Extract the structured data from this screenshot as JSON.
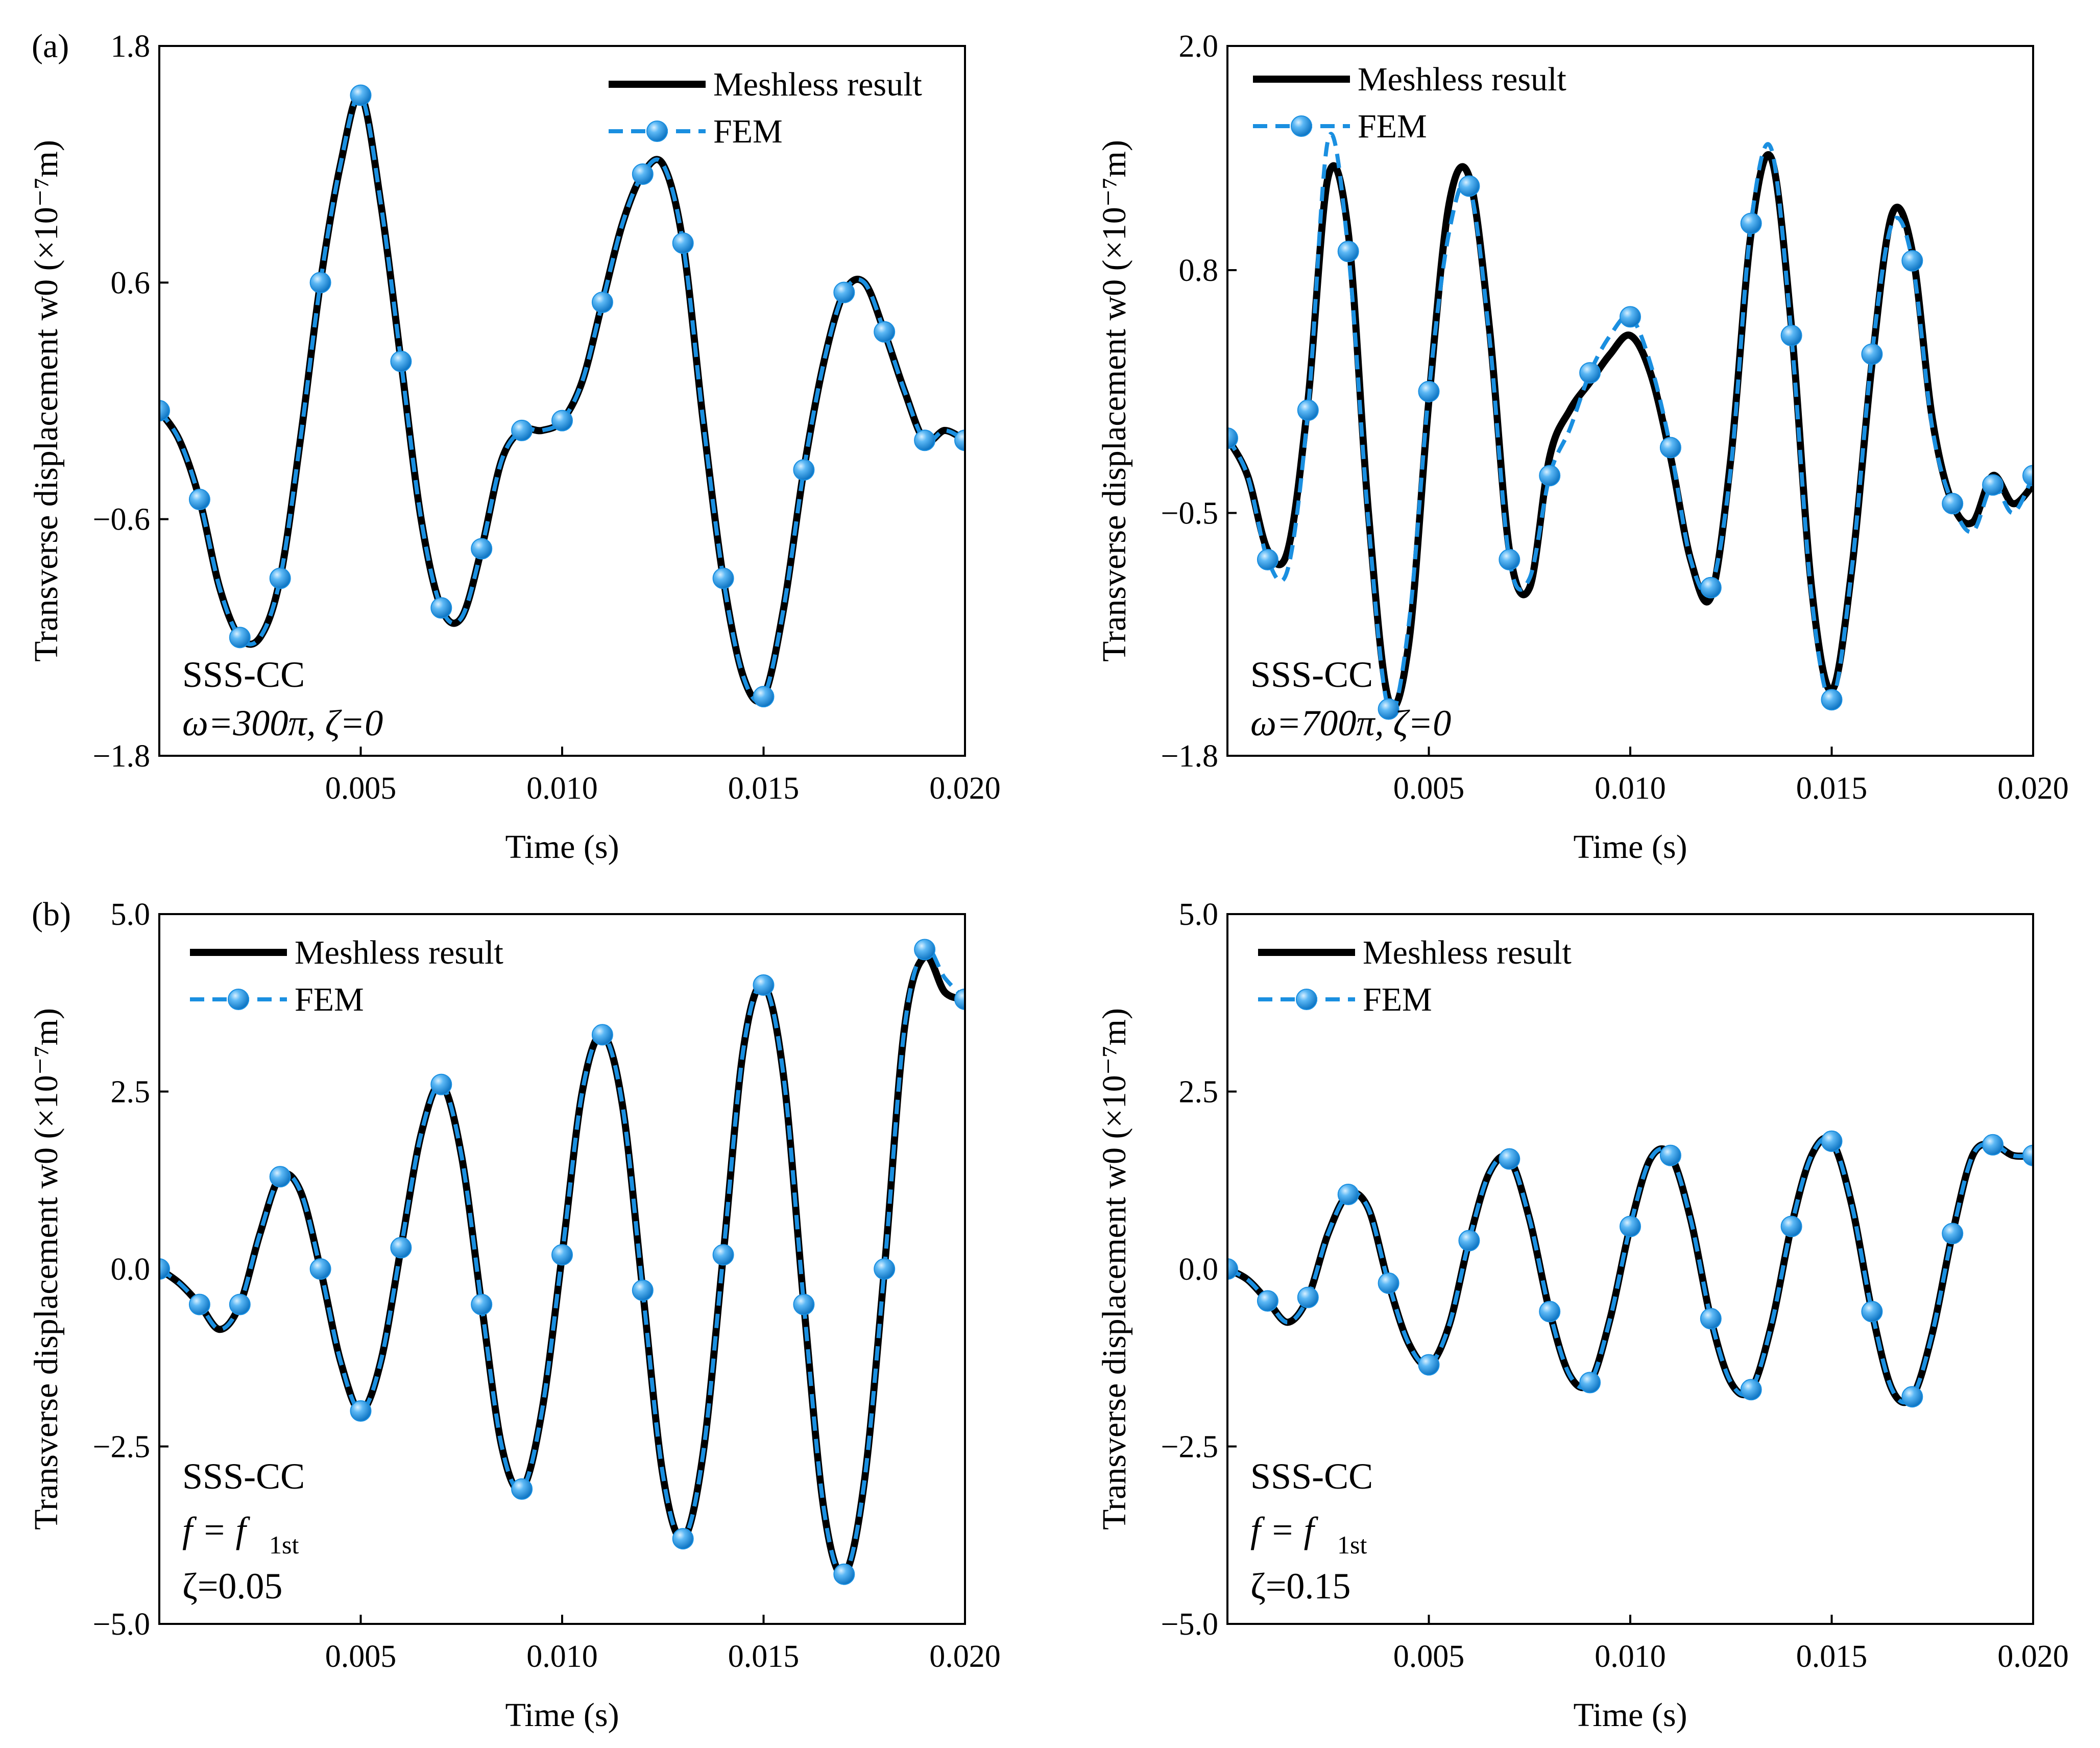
{
  "figure": {
    "panel_tags": [
      "(a)",
      "(b)"
    ]
  },
  "chart_data": [
    {
      "type": "line",
      "panel": "(a)",
      "xlabel": "Time (s)",
      "ylabel": "Transverse displacement w0 (×10⁻⁷m)",
      "xlim": [
        0,
        0.02
      ],
      "ylim": [
        -1.8,
        1.8
      ],
      "xticks": [
        0.005,
        0.01,
        0.015,
        0.02
      ],
      "xtick_labels": [
        "0.005",
        "0.010",
        "0.015",
        "0.020"
      ],
      "yticks": [
        -1.8,
        -0.6,
        0.6,
        1.8
      ],
      "ytick_labels": [
        "−1.8",
        "−0.6",
        "0.6",
        "1.8"
      ],
      "legend": [
        "Meshless result",
        "FEM"
      ],
      "annotations": [
        "SSS-CC",
        "ω=300π, ζ=0"
      ],
      "colors": {
        "meshless": "#000000",
        "fem": "#1a8fe0"
      },
      "series": [
        {
          "name": "Meshless result",
          "x": [
            0,
            0.0005,
            0.001,
            0.0015,
            0.002,
            0.0025,
            0.003,
            0.0035,
            0.004,
            0.0045,
            0.005,
            0.0055,
            0.006,
            0.0065,
            0.007,
            0.0075,
            0.008,
            0.0085,
            0.009,
            0.0095,
            0.01,
            0.0105,
            0.011,
            0.0115,
            0.012,
            0.0125,
            0.013,
            0.0135,
            0.014,
            0.0145,
            0.015,
            0.0155,
            0.016,
            0.0165,
            0.017,
            0.0175,
            0.018,
            0.0185,
            0.019,
            0.0195,
            0.02
          ],
          "y": [
            -0.05,
            -0.2,
            -0.5,
            -0.95,
            -1.2,
            -1.2,
            -0.9,
            -0.2,
            0.6,
            1.2,
            1.55,
            1.0,
            0.2,
            -0.6,
            -1.05,
            -1.1,
            -0.75,
            -0.3,
            -0.15,
            -0.15,
            -0.1,
            0.1,
            0.5,
            0.9,
            1.15,
            1.2,
            0.8,
            -0.1,
            -0.9,
            -1.4,
            -1.5,
            -1.05,
            -0.35,
            0.2,
            0.55,
            0.6,
            0.35,
            0.05,
            -0.2,
            -0.15,
            -0.2
          ]
        },
        {
          "name": "FEM",
          "x": [
            0,
            0.0005,
            0.001,
            0.0015,
            0.002,
            0.0025,
            0.003,
            0.0035,
            0.004,
            0.0045,
            0.005,
            0.0055,
            0.006,
            0.0065,
            0.007,
            0.0075,
            0.008,
            0.0085,
            0.009,
            0.0095,
            0.01,
            0.0105,
            0.011,
            0.0115,
            0.012,
            0.0125,
            0.013,
            0.0135,
            0.014,
            0.0145,
            0.015,
            0.0155,
            0.016,
            0.0165,
            0.017,
            0.0175,
            0.018,
            0.0185,
            0.019,
            0.0195,
            0.02
          ],
          "y": [
            -0.05,
            -0.2,
            -0.5,
            -0.95,
            -1.2,
            -1.2,
            -0.9,
            -0.2,
            0.6,
            1.2,
            1.55,
            1.0,
            0.2,
            -0.6,
            -1.05,
            -1.1,
            -0.75,
            -0.3,
            -0.15,
            -0.15,
            -0.1,
            0.1,
            0.5,
            0.9,
            1.15,
            1.2,
            0.8,
            -0.1,
            -0.9,
            -1.4,
            -1.5,
            -1.05,
            -0.35,
            0.2,
            0.55,
            0.6,
            0.35,
            0.05,
            -0.2,
            -0.15,
            -0.2
          ]
        }
      ]
    },
    {
      "type": "line",
      "panel": "",
      "xlabel": "Time (s)",
      "ylabel": "Transverse displacement w0 (×10⁻⁷m)",
      "xlim": [
        0,
        0.02
      ],
      "ylim": [
        -1.8,
        2.0
      ],
      "xticks": [
        0.005,
        0.01,
        0.015,
        0.02
      ],
      "xtick_labels": [
        "0.005",
        "0.010",
        "0.015",
        "0.020"
      ],
      "yticks": [
        -1.8,
        -0.5,
        0.8,
        2.0
      ],
      "ytick_labels": [
        "−1.8",
        "−0.5",
        "0.8",
        "2.0"
      ],
      "legend": [
        "Meshless result",
        "FEM"
      ],
      "annotations": [
        "SSS-CC",
        "ω=700π, ζ=0"
      ],
      "colors": {
        "meshless": "#000000",
        "fem": "#1a8fe0"
      },
      "series": [
        {
          "name": "Meshless result",
          "x": [
            0,
            0.0005,
            0.001,
            0.0015,
            0.002,
            0.0025,
            0.003,
            0.0035,
            0.004,
            0.0045,
            0.005,
            0.0055,
            0.006,
            0.0065,
            0.007,
            0.0075,
            0.008,
            0.0085,
            0.009,
            0.0095,
            0.01,
            0.0105,
            0.011,
            0.0115,
            0.012,
            0.0125,
            0.013,
            0.0135,
            0.014,
            0.0145,
            0.015,
            0.0155,
            0.016,
            0.0165,
            0.017,
            0.0175,
            0.018,
            0.0185,
            0.019,
            0.0195,
            0.02
          ],
          "y": [
            -0.1,
            -0.3,
            -0.7,
            -0.7,
            0.1,
            1.3,
            1.0,
            -0.5,
            -1.5,
            -1.2,
            0.1,
            1.15,
            1.3,
            0.5,
            -0.7,
            -0.9,
            -0.2,
            0.05,
            0.2,
            0.35,
            0.45,
            0.25,
            -0.2,
            -0.75,
            -0.95,
            -0.2,
            1.0,
            1.4,
            0.5,
            -0.9,
            -1.45,
            -0.8,
            0.3,
            1.1,
            0.9,
            0.0,
            -0.45,
            -0.55,
            -0.3,
            -0.45,
            -0.35
          ]
        },
        {
          "name": "FEM",
          "x": [
            0,
            0.0005,
            0.001,
            0.0015,
            0.002,
            0.0025,
            0.003,
            0.0035,
            0.004,
            0.0045,
            0.005,
            0.0055,
            0.006,
            0.0065,
            0.007,
            0.0075,
            0.008,
            0.0085,
            0.009,
            0.0095,
            0.01,
            0.0105,
            0.011,
            0.0115,
            0.012,
            0.0125,
            0.013,
            0.0135,
            0.014,
            0.0145,
            0.015,
            0.0155,
            0.016,
            0.0165,
            0.017,
            0.0175,
            0.018,
            0.0185,
            0.019,
            0.0195,
            0.02
          ],
          "y": [
            -0.1,
            -0.3,
            -0.75,
            -0.8,
            0.05,
            1.5,
            0.9,
            -0.55,
            -1.55,
            -1.1,
            0.15,
            1.0,
            1.25,
            0.45,
            -0.75,
            -0.85,
            -0.3,
            -0.05,
            0.25,
            0.45,
            0.55,
            0.3,
            -0.15,
            -0.75,
            -0.9,
            -0.25,
            1.05,
            1.45,
            0.45,
            -0.95,
            -1.5,
            -0.8,
            0.35,
            1.05,
            0.85,
            -0.05,
            -0.45,
            -0.6,
            -0.35,
            -0.5,
            -0.3
          ]
        }
      ]
    },
    {
      "type": "line",
      "panel": "(b)",
      "xlabel": "Time (s)",
      "ylabel": "Transverse displacement w0 (×10⁻⁷m)",
      "xlim": [
        0,
        0.02
      ],
      "ylim": [
        -5.0,
        5.0
      ],
      "xticks": [
        0.005,
        0.01,
        0.015,
        0.02
      ],
      "xtick_labels": [
        "0.005",
        "0.010",
        "0.015",
        "0.020"
      ],
      "yticks": [
        -5.0,
        -2.5,
        0.0,
        2.5,
        5.0
      ],
      "ytick_labels": [
        "−5.0",
        "−2.5",
        "0.0",
        "2.5",
        "5.0"
      ],
      "legend": [
        "Meshless result",
        "FEM"
      ],
      "annotations": [
        "SSS-CC",
        "f = f",
        "1st",
        "ζ=0.05"
      ],
      "colors": {
        "meshless": "#000000",
        "fem": "#1a8fe0"
      },
      "series": [
        {
          "name": "Meshless result",
          "x": [
            0,
            0.0005,
            0.001,
            0.0015,
            0.002,
            0.0025,
            0.003,
            0.0035,
            0.004,
            0.0045,
            0.005,
            0.0055,
            0.006,
            0.0065,
            0.007,
            0.0075,
            0.008,
            0.0085,
            0.009,
            0.0095,
            0.01,
            0.0105,
            0.011,
            0.0115,
            0.012,
            0.0125,
            0.013,
            0.0135,
            0.014,
            0.0145,
            0.015,
            0.0155,
            0.016,
            0.0165,
            0.017,
            0.0175,
            0.018,
            0.0185,
            0.019,
            0.0195,
            0.02
          ],
          "y": [
            0,
            -0.2,
            -0.5,
            -0.85,
            -0.5,
            0.5,
            1.3,
            1.1,
            0.0,
            -1.3,
            -2.0,
            -1.3,
            0.3,
            1.9,
            2.6,
            1.6,
            -0.5,
            -2.5,
            -3.1,
            -2.0,
            0.2,
            2.5,
            3.3,
            2.3,
            -0.3,
            -2.9,
            -3.8,
            -2.6,
            0.2,
            3.1,
            4.0,
            2.7,
            -0.5,
            -3.4,
            -4.3,
            -3.0,
            0.0,
            3.4,
            4.4,
            3.9,
            3.8
          ]
        },
        {
          "name": "FEM",
          "x": [
            0,
            0.0005,
            0.001,
            0.0015,
            0.002,
            0.0025,
            0.003,
            0.0035,
            0.004,
            0.0045,
            0.005,
            0.0055,
            0.006,
            0.0065,
            0.007,
            0.0075,
            0.008,
            0.0085,
            0.009,
            0.0095,
            0.01,
            0.0105,
            0.011,
            0.0115,
            0.012,
            0.0125,
            0.013,
            0.0135,
            0.014,
            0.0145,
            0.015,
            0.0155,
            0.016,
            0.0165,
            0.017,
            0.0175,
            0.018,
            0.0185,
            0.019,
            0.0195,
            0.02
          ],
          "y": [
            0,
            -0.2,
            -0.5,
            -0.85,
            -0.5,
            0.5,
            1.3,
            1.1,
            0.0,
            -1.3,
            -2.0,
            -1.3,
            0.3,
            1.9,
            2.6,
            1.6,
            -0.5,
            -2.5,
            -3.1,
            -2.0,
            0.2,
            2.5,
            3.3,
            2.3,
            -0.3,
            -2.9,
            -3.8,
            -2.6,
            0.2,
            3.1,
            4.0,
            2.7,
            -0.5,
            -3.4,
            -4.3,
            -3.0,
            0.0,
            3.4,
            4.5,
            4.1,
            3.8
          ]
        }
      ]
    },
    {
      "type": "line",
      "panel": "",
      "xlabel": "Time (s)",
      "ylabel": "Transverse displacement w0 (×10⁻⁷m)",
      "xlim": [
        0,
        0.02
      ],
      "ylim": [
        -5.0,
        5.0
      ],
      "xticks": [
        0.005,
        0.01,
        0.015,
        0.02
      ],
      "xtick_labels": [
        "0.005",
        "0.010",
        "0.015",
        "0.020"
      ],
      "yticks": [
        -5.0,
        -2.5,
        0.0,
        2.5,
        5.0
      ],
      "ytick_labels": [
        "−5.0",
        "−2.5",
        "0.0",
        "2.5",
        "5.0"
      ],
      "legend": [
        "Meshless result",
        "FEM"
      ],
      "annotations": [
        "SSS-CC",
        "f = f",
        "1st",
        "ζ=0.15"
      ],
      "colors": {
        "meshless": "#000000",
        "fem": "#1a8fe0"
      },
      "series": [
        {
          "name": "Meshless result",
          "x": [
            0,
            0.0005,
            0.001,
            0.0015,
            0.002,
            0.0025,
            0.003,
            0.0035,
            0.004,
            0.0045,
            0.005,
            0.0055,
            0.006,
            0.0065,
            0.007,
            0.0075,
            0.008,
            0.0085,
            0.009,
            0.0095,
            0.01,
            0.0105,
            0.011,
            0.0115,
            0.012,
            0.0125,
            0.013,
            0.0135,
            0.014,
            0.0145,
            0.015,
            0.0155,
            0.016,
            0.0165,
            0.017,
            0.0175,
            0.018,
            0.0185,
            0.019,
            0.0195,
            0.02
          ],
          "y": [
            0,
            -0.15,
            -0.45,
            -0.75,
            -0.4,
            0.5,
            1.05,
            0.85,
            -0.2,
            -1.05,
            -1.35,
            -0.8,
            0.4,
            1.35,
            1.55,
            0.7,
            -0.6,
            -1.5,
            -1.6,
            -0.7,
            0.6,
            1.55,
            1.6,
            0.7,
            -0.7,
            -1.6,
            -1.7,
            -0.8,
            0.6,
            1.6,
            1.8,
            0.9,
            -0.6,
            -1.7,
            -1.8,
            -0.9,
            0.5,
            1.6,
            1.75,
            1.6,
            1.6
          ]
        },
        {
          "name": "FEM",
          "x": [
            0,
            0.0005,
            0.001,
            0.0015,
            0.002,
            0.0025,
            0.003,
            0.0035,
            0.004,
            0.0045,
            0.005,
            0.0055,
            0.006,
            0.0065,
            0.007,
            0.0075,
            0.008,
            0.0085,
            0.009,
            0.0095,
            0.01,
            0.0105,
            0.011,
            0.0115,
            0.012,
            0.0125,
            0.013,
            0.0135,
            0.014,
            0.0145,
            0.015,
            0.0155,
            0.016,
            0.0165,
            0.017,
            0.0175,
            0.018,
            0.0185,
            0.019,
            0.0195,
            0.02
          ],
          "y": [
            0,
            -0.15,
            -0.45,
            -0.75,
            -0.4,
            0.5,
            1.05,
            0.85,
            -0.2,
            -1.05,
            -1.35,
            -0.8,
            0.4,
            1.35,
            1.55,
            0.7,
            -0.6,
            -1.5,
            -1.6,
            -0.7,
            0.6,
            1.55,
            1.6,
            0.7,
            -0.7,
            -1.6,
            -1.7,
            -0.8,
            0.6,
            1.6,
            1.8,
            0.9,
            -0.6,
            -1.7,
            -1.8,
            -0.9,
            0.5,
            1.6,
            1.75,
            1.6,
            1.6
          ]
        }
      ]
    }
  ]
}
